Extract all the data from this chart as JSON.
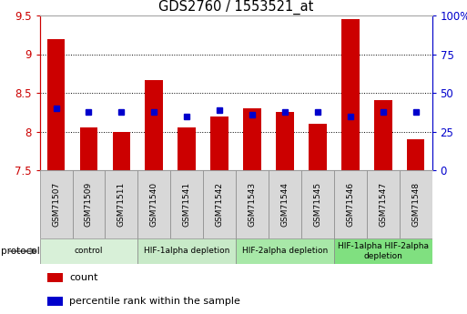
{
  "title": "GDS2760 / 1553521_at",
  "samples": [
    "GSM71507",
    "GSM71509",
    "GSM71511",
    "GSM71540",
    "GSM71541",
    "GSM71542",
    "GSM71543",
    "GSM71544",
    "GSM71545",
    "GSM71546",
    "GSM71547",
    "GSM71548"
  ],
  "counts": [
    9.2,
    8.05,
    8.0,
    8.67,
    8.05,
    8.2,
    8.3,
    8.25,
    8.1,
    9.45,
    8.4,
    7.9
  ],
  "percentile_ranks_left": [
    8.3,
    8.25,
    8.25,
    8.25,
    8.2,
    8.28,
    8.22,
    8.25,
    8.25,
    8.2,
    8.25,
    8.25
  ],
  "ylim": [
    7.5,
    9.5
  ],
  "y_ticks_left": [
    7.5,
    8.0,
    8.5,
    9.0,
    9.5
  ],
  "y_ticks_right": [
    0,
    25,
    50,
    75,
    100
  ],
  "bar_color": "#CC0000",
  "dot_color": "#0000CC",
  "grid_color": "#000000",
  "protocol_groups": [
    {
      "label": "control",
      "start": 0,
      "end": 3,
      "color": "#d8f0d8"
    },
    {
      "label": "HIF-1alpha depletion",
      "start": 3,
      "end": 6,
      "color": "#c8eac8"
    },
    {
      "label": "HIF-2alpha depletion",
      "start": 6,
      "end": 9,
      "color": "#a8e8a8"
    },
    {
      "label": "HIF-1alpha HIF-2alpha\ndepletion",
      "start": 9,
      "end": 12,
      "color": "#80e080"
    }
  ],
  "legend_items": [
    {
      "label": "count",
      "color": "#CC0000"
    },
    {
      "label": "percentile rank within the sample",
      "color": "#0000CC"
    }
  ],
  "left_axis_color": "#CC0000",
  "right_axis_color": "#0000CC",
  "protocol_label": "protocol"
}
